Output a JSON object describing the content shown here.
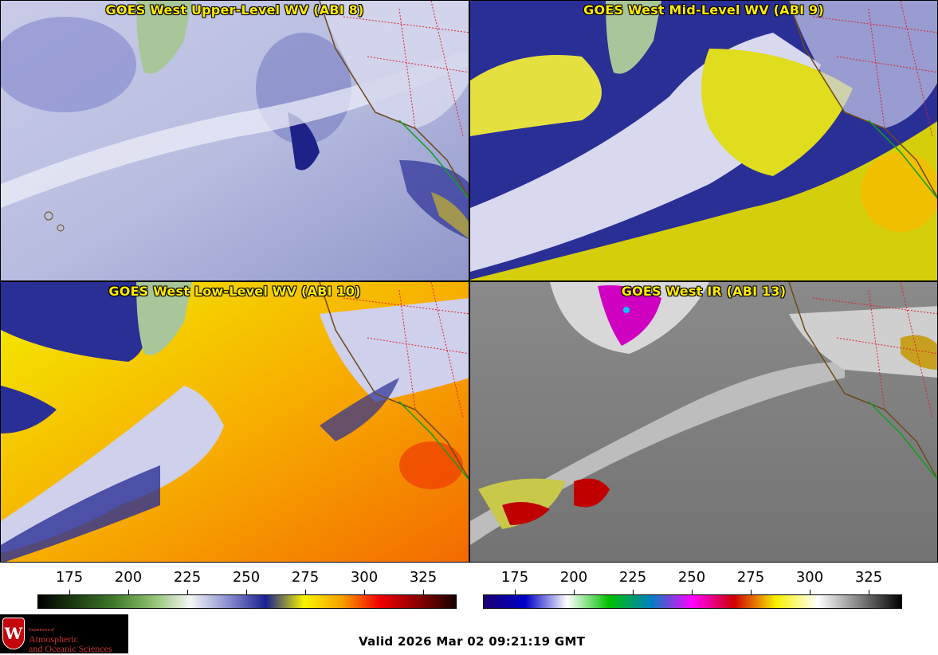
{
  "panels": {
    "upper": {
      "title": "GOES West Upper-Level WV (ABI 8)"
    },
    "mid": {
      "title": "GOES West Mid-Level WV (ABI 9)"
    },
    "low": {
      "title": "GOES West Low-Level WV (ABI 10)"
    },
    "ir": {
      "title": "GOES West IR (ABI 13)"
    }
  },
  "colorbars": {
    "wv": {
      "ticks": [
        "175",
        "200",
        "225",
        "250",
        "275",
        "300",
        "325"
      ],
      "colors": [
        "#000000",
        "#1e3d12",
        "#3f7a2b",
        "#8cbf6e",
        "#f4f7f4",
        "#8a8fd0",
        "#1a1f8e",
        "#f7f500",
        "#f7a000",
        "#f20000",
        "#8a0000",
        "#1a0000"
      ]
    },
    "ir": {
      "ticks": [
        "175",
        "200",
        "225",
        "250",
        "275",
        "300",
        "325"
      ],
      "colors": [
        "#1a0070",
        "#0000c8",
        "#ffffff",
        "#00c000",
        "#0080c0",
        "#ff00ff",
        "#d00000",
        "#f7f000",
        "#ffffff",
        "#808080",
        "#000000"
      ]
    }
  },
  "logo": {
    "letter": "W",
    "dept": "Department of",
    "line1": "Atmospheric",
    "line2": "and Oceanic Sciences"
  },
  "footer": {
    "valid": "Valid 2026 Mar 02 09:21:19 GMT"
  }
}
